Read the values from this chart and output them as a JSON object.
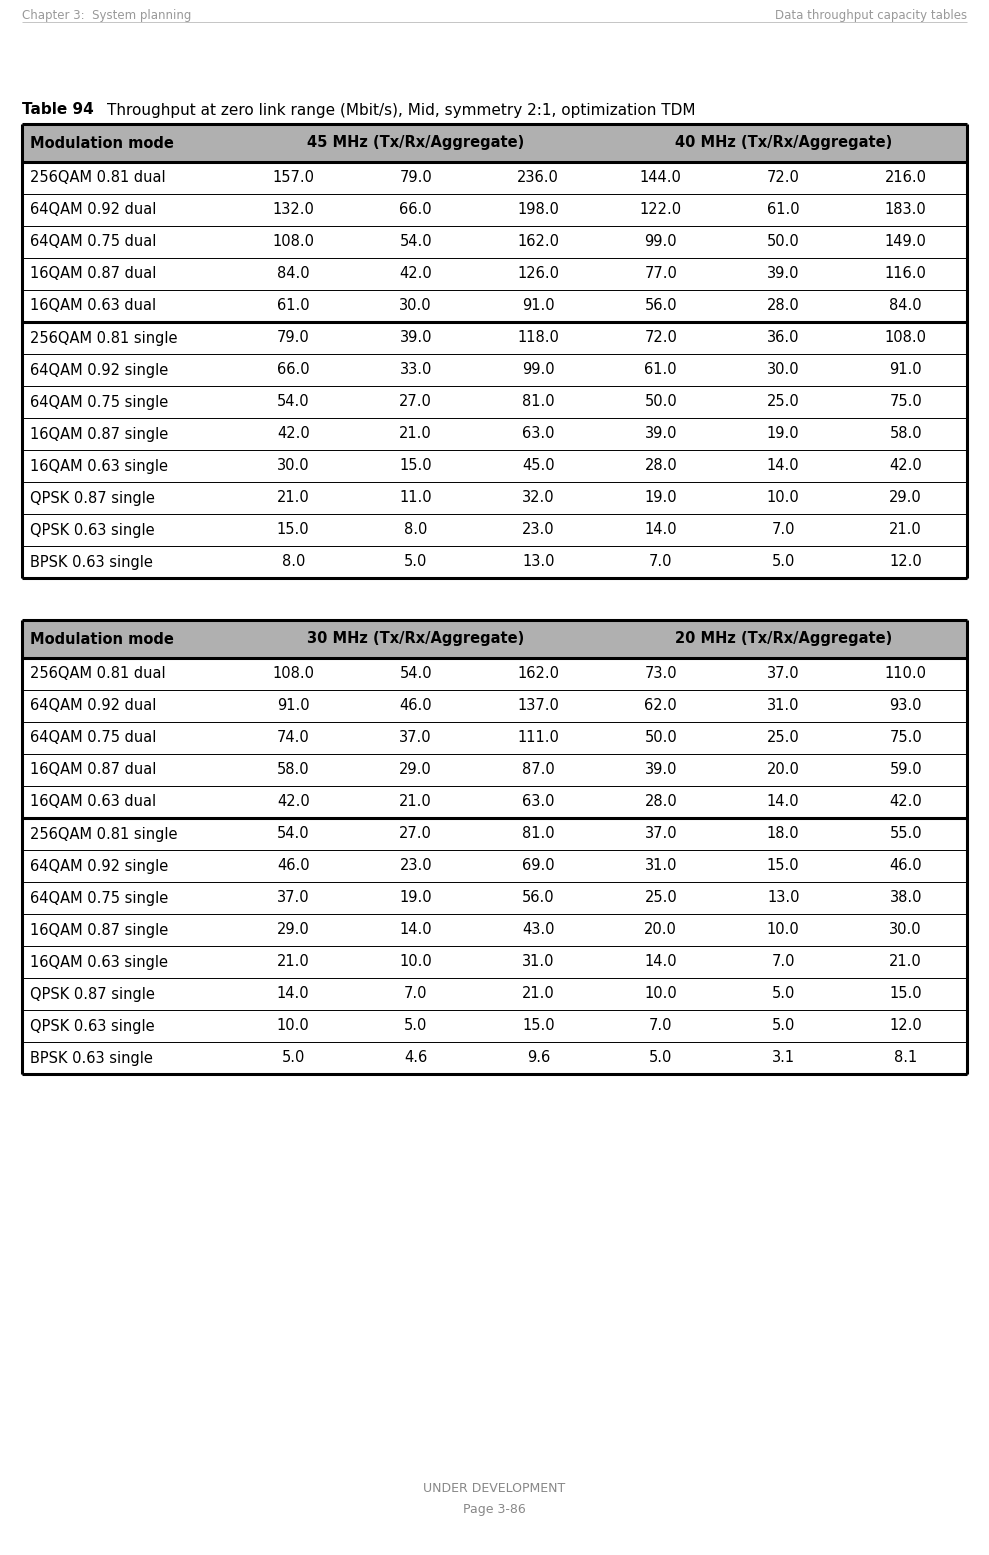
{
  "header_left": "Chapter 3:  System planning",
  "header_right": "Data throughput capacity tables",
  "table_label": "Table 94",
  "table_title": "Throughput at zero link range (Mbit/s), Mid, symmetry 2:1, optimization TDM",
  "table1_col1": "45 MHz (Tx/Rx/Aggregate)",
  "table1_col2": "40 MHz (Tx/Rx/Aggregate)",
  "table2_col1": "30 MHz (Tx/Rx/Aggregate)",
  "table2_col2": "20 MHz (Tx/Rx/Aggregate)",
  "col0_header": "Modulation mode",
  "table1_rows": [
    [
      "256QAM 0.81 dual",
      "157.0",
      "79.0",
      "236.0",
      "144.0",
      "72.0",
      "216.0"
    ],
    [
      "64QAM 0.92 dual",
      "132.0",
      "66.0",
      "198.0",
      "122.0",
      "61.0",
      "183.0"
    ],
    [
      "64QAM 0.75 dual",
      "108.0",
      "54.0",
      "162.0",
      "99.0",
      "50.0",
      "149.0"
    ],
    [
      "16QAM 0.87 dual",
      "84.0",
      "42.0",
      "126.0",
      "77.0",
      "39.0",
      "116.0"
    ],
    [
      "16QAM 0.63 dual",
      "61.0",
      "30.0",
      "91.0",
      "56.0",
      "28.0",
      "84.0"
    ],
    [
      "256QAM 0.81 single",
      "79.0",
      "39.0",
      "118.0",
      "72.0",
      "36.0",
      "108.0"
    ],
    [
      "64QAM 0.92 single",
      "66.0",
      "33.0",
      "99.0",
      "61.0",
      "30.0",
      "91.0"
    ],
    [
      "64QAM 0.75 single",
      "54.0",
      "27.0",
      "81.0",
      "50.0",
      "25.0",
      "75.0"
    ],
    [
      "16QAM 0.87 single",
      "42.0",
      "21.0",
      "63.0",
      "39.0",
      "19.0",
      "58.0"
    ],
    [
      "16QAM 0.63 single",
      "30.0",
      "15.0",
      "45.0",
      "28.0",
      "14.0",
      "42.0"
    ],
    [
      "QPSK 0.87 single",
      "21.0",
      "11.0",
      "32.0",
      "19.0",
      "10.0",
      "29.0"
    ],
    [
      "QPSK 0.63 single",
      "15.0",
      "8.0",
      "23.0",
      "14.0",
      "7.0",
      "21.0"
    ],
    [
      "BPSK 0.63 single",
      "8.0",
      "5.0",
      "13.0",
      "7.0",
      "5.0",
      "12.0"
    ]
  ],
  "table2_rows": [
    [
      "256QAM 0.81 dual",
      "108.0",
      "54.0",
      "162.0",
      "73.0",
      "37.0",
      "110.0"
    ],
    [
      "64QAM 0.92 dual",
      "91.0",
      "46.0",
      "137.0",
      "62.0",
      "31.0",
      "93.0"
    ],
    [
      "64QAM 0.75 dual",
      "74.0",
      "37.0",
      "111.0",
      "50.0",
      "25.0",
      "75.0"
    ],
    [
      "16QAM 0.87 dual",
      "58.0",
      "29.0",
      "87.0",
      "39.0",
      "20.0",
      "59.0"
    ],
    [
      "16QAM 0.63 dual",
      "42.0",
      "21.0",
      "63.0",
      "28.0",
      "14.0",
      "42.0"
    ],
    [
      "256QAM 0.81 single",
      "54.0",
      "27.0",
      "81.0",
      "37.0",
      "18.0",
      "55.0"
    ],
    [
      "64QAM 0.92 single",
      "46.0",
      "23.0",
      "69.0",
      "31.0",
      "15.0",
      "46.0"
    ],
    [
      "64QAM 0.75 single",
      "37.0",
      "19.0",
      "56.0",
      "25.0",
      "13.0",
      "38.0"
    ],
    [
      "16QAM 0.87 single",
      "29.0",
      "14.0",
      "43.0",
      "20.0",
      "10.0",
      "30.0"
    ],
    [
      "16QAM 0.63 single",
      "21.0",
      "10.0",
      "31.0",
      "14.0",
      "7.0",
      "21.0"
    ],
    [
      "QPSK 0.87 single",
      "14.0",
      "7.0",
      "21.0",
      "10.0",
      "5.0",
      "15.0"
    ],
    [
      "QPSK 0.63 single",
      "10.0",
      "5.0",
      "15.0",
      "7.0",
      "5.0",
      "12.0"
    ],
    [
      "BPSK 0.63 single",
      "5.0",
      "4.6",
      "9.6",
      "5.0",
      "3.1",
      "8.1"
    ]
  ],
  "thick_separator_after_row1": [
    4
  ],
  "thick_separator_after_row2": [
    4
  ],
  "footer_text": "UNDER DEVELOPMENT",
  "footer_page": "Page 3-86",
  "bg_color": "#ffffff",
  "header_bg": "#b0b0b0",
  "thick_lw": 2.2,
  "thin_lw": 0.7,
  "header_font_size": 10.5,
  "body_font_size": 10.5
}
